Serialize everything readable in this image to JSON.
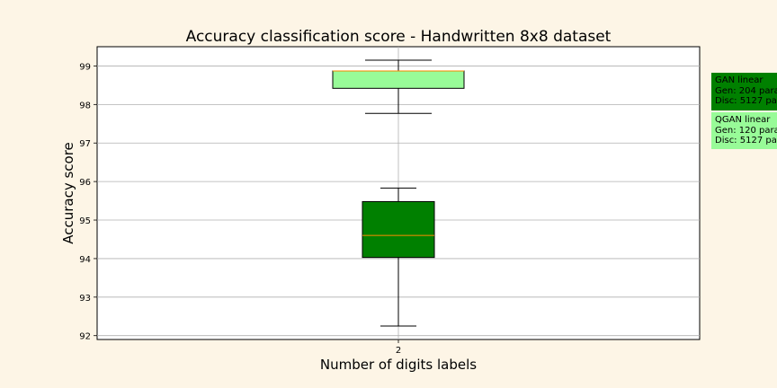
{
  "chart_data": {
    "type": "box",
    "title": "Accuracy classification score - Handwritten 8x8 dataset",
    "xlabel": "Number of digits labels",
    "ylabel": "Accuracy score",
    "categories": [
      "2"
    ],
    "ylim": [
      91.9,
      99.5
    ],
    "yticks": [
      92,
      93,
      94,
      95,
      96,
      97,
      98,
      99
    ],
    "grid": true,
    "legend_placement": "right, outside plot",
    "series": [
      {
        "legend": [
          "GAN linear",
          "Gen: 204 para",
          "Disc: 5127 pa"
        ],
        "color": "#008000",
        "whisker_low": 92.25,
        "q1": 94.03,
        "median": 94.6,
        "q3": 95.48,
        "whisker_high": 95.83
      },
      {
        "legend": [
          "QGAN linear",
          "Gen: 120 para",
          "Disc: 5127 pa"
        ],
        "color": "#98fb98",
        "whisker_low": 97.77,
        "q1": 98.42,
        "median": 98.87,
        "q3": 98.87,
        "whisker_high": 99.15
      }
    ]
  }
}
